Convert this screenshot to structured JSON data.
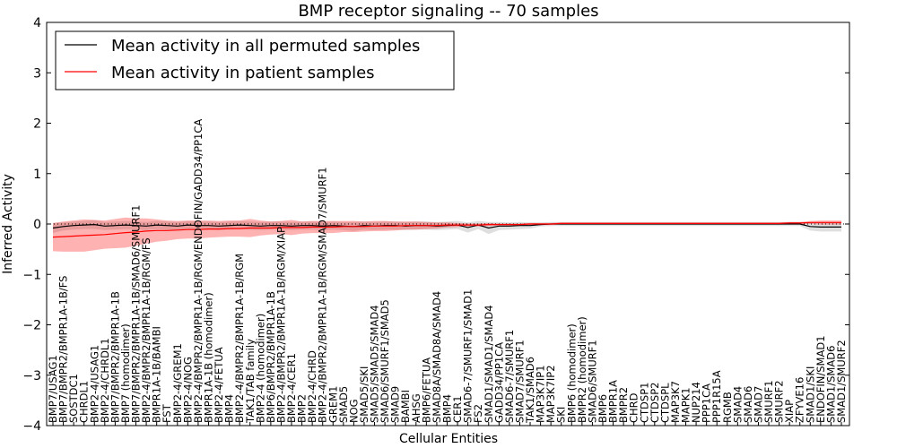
{
  "chart_data": {
    "type": "line",
    "title": "BMP receptor signaling -- 70 samples",
    "xlabel": "Cellular Entities",
    "ylabel": "Inferred Activity",
    "ylim": [
      -4,
      4
    ],
    "yticks": [
      -4,
      -3,
      -2,
      -1,
      0,
      1,
      2,
      3,
      4
    ],
    "legend_position": "top-left",
    "categories": [
      "BMP7/USAG1",
      "BMP7/BMPR2/BMPR1A-1B/FS",
      "SOSTDC1",
      "CHRDL1",
      "BMP2-4/USAG1",
      "BMP2-4/CHRDL1",
      "BMP7/BMPR2/BMPR1A-1B",
      "BMP7 (homodimer)",
      "BMP7/BMPR2/BMPR1A-1B/SMAD6/SMURF1",
      "BMP2-4/BMPR2/BMPR1A-1B/RGM/FS",
      "BMPR1A-1B/BAMBI",
      "FST",
      "BMP2-4/GREM1",
      "BMP2-4/NOG",
      "BMP2-4/BMPR2/BMPR1A-1B/RGM/ENDOFIN/GADD34/PP1CA",
      "BMPR1A-1B (homodimer)",
      "BMP2-4/FETUA",
      "BMP4",
      "BMP2-4/BMPR2/BMPR1A-1B/RGM",
      "TAK1/TAB family",
      "BMP2-4 (homodimer)",
      "BMP6/BMPR2/BMPR1A-1B",
      "BMP2-4/BMPR2/BMPR1A-1B/RGM/XIAP",
      "BMP2-4/CER1",
      "BMP2",
      "BMP2-4/CHRD",
      "BMP2-4/BMPR2/BMPR1A-1B/RGM/SMAD7/SMURF1",
      "GREM1",
      "SMAD5",
      "NOG",
      "SMAD5/SKI",
      "SMAD5/SMAD5/SMAD4",
      "SMAD6/SMURF1/SMAD5",
      "SMAD9",
      "BAMBI",
      "AHSG",
      "BMP6/FETUA",
      "SMAD8A/SMAD8A/SMAD4",
      "BMP4",
      "CER1",
      "SMAD6-7/SMURF1/SMAD1",
      "FS2",
      "SMAD1/SMAD1/SMAD4",
      "GADD34/PP1CA",
      "SMAD6-7/SMURF1",
      "SMAD7/SMURF1",
      "TAK1/SMAD6",
      "MAP3K7IP1",
      "MAP3K7IP2",
      "SKI",
      "BMP6 (homodimer)",
      "BMPR2 (homodimer)",
      "SMAD6/SMURF1",
      "BMP6",
      "BMPR1A",
      "BMPR2",
      "CHRD",
      "CTDSP1",
      "CTDSP2",
      "CTDSPL",
      "MAP3K7",
      "MAPK1",
      "NUP214",
      "PPP1CA",
      "PPP1R15A",
      "RGMB",
      "SMAD4",
      "SMAD6",
      "SMAD7",
      "SMURF1",
      "SMURF2",
      "XIAP",
      "ZFYVE16",
      "SMAD1/SKI",
      "ENDOFIN/SMAD1",
      "SMAD1/SMAD6",
      "SMAD1/SMURF2"
    ],
    "series": [
      {
        "name": "Mean activity in all permuted samples",
        "color": "#000000",
        "values": [
          -0.08,
          -0.05,
          -0.03,
          -0.02,
          -0.01,
          -0.04,
          -0.03,
          -0.02,
          -0.03,
          -0.04,
          -0.02,
          -0.03,
          -0.04,
          -0.02,
          -0.03,
          -0.03,
          -0.04,
          -0.03,
          -0.02,
          -0.03,
          -0.04,
          -0.03,
          -0.03,
          -0.04,
          -0.03,
          -0.03,
          -0.04,
          -0.03,
          -0.04,
          -0.05,
          -0.03,
          -0.04,
          -0.03,
          -0.03,
          -0.04,
          -0.03,
          -0.03,
          -0.04,
          -0.03,
          -0.02,
          -0.07,
          -0.02,
          -0.08,
          -0.04,
          -0.04,
          -0.03,
          -0.03,
          -0.01,
          0.0,
          0.0,
          0.0,
          0.0,
          0.0,
          0.0,
          0.0,
          0.0,
          0.0,
          0.0,
          0.0,
          0.0,
          0.0,
          0.0,
          0.0,
          0.0,
          0.0,
          0.0,
          0.0,
          0.0,
          0.0,
          0.0,
          0.0,
          0.0,
          0.0,
          -0.05,
          -0.06,
          -0.06,
          -0.06
        ],
        "band": [
          0.1,
          0.08,
          0.08,
          0.08,
          0.09,
          0.08,
          0.08,
          0.08,
          0.08,
          0.08,
          0.08,
          0.08,
          0.08,
          0.08,
          0.08,
          0.08,
          0.08,
          0.08,
          0.08,
          0.08,
          0.08,
          0.08,
          0.08,
          0.08,
          0.08,
          0.08,
          0.08,
          0.08,
          0.08,
          0.09,
          0.08,
          0.08,
          0.08,
          0.08,
          0.08,
          0.08,
          0.08,
          0.08,
          0.08,
          0.08,
          0.1,
          0.08,
          0.12,
          0.08,
          0.07,
          0.07,
          0.06,
          0.04,
          0.04,
          0.04,
          0.04,
          0.04,
          0.04,
          0.04,
          0.04,
          0.04,
          0.04,
          0.04,
          0.04,
          0.04,
          0.04,
          0.04,
          0.04,
          0.04,
          0.04,
          0.04,
          0.04,
          0.04,
          0.04,
          0.04,
          0.04,
          0.04,
          0.04,
          0.08,
          0.09,
          0.09,
          0.09
        ]
      },
      {
        "name": "Mean activity in patient samples",
        "color": "#ff0000",
        "values": [
          -0.26,
          -0.25,
          -0.24,
          -0.23,
          -0.22,
          -0.21,
          -0.19,
          -0.17,
          -0.16,
          -0.14,
          -0.13,
          -0.13,
          -0.12,
          -0.11,
          -0.11,
          -0.1,
          -0.1,
          -0.09,
          -0.09,
          -0.08,
          -0.08,
          -0.08,
          -0.07,
          -0.07,
          -0.07,
          -0.06,
          -0.06,
          -0.06,
          -0.05,
          -0.05,
          -0.05,
          -0.04,
          -0.04,
          -0.04,
          -0.03,
          -0.03,
          -0.03,
          -0.03,
          -0.02,
          -0.02,
          -0.02,
          -0.02,
          -0.01,
          -0.01,
          -0.01,
          -0.01,
          0.0,
          0.0,
          0.0,
          0.01,
          0.01,
          0.01,
          0.01,
          0.01,
          0.01,
          0.01,
          0.01,
          0.01,
          0.01,
          0.01,
          0.01,
          0.01,
          0.01,
          0.01,
          0.01,
          0.01,
          0.01,
          0.01,
          0.01,
          0.01,
          0.01,
          0.02,
          0.02,
          0.03,
          0.03,
          0.03,
          0.03
        ],
        "band": [
          0.28,
          0.3,
          0.31,
          0.32,
          0.3,
          0.28,
          0.29,
          0.3,
          0.27,
          0.25,
          0.22,
          0.2,
          0.18,
          0.18,
          0.18,
          0.17,
          0.16,
          0.16,
          0.16,
          0.18,
          0.15,
          0.13,
          0.13,
          0.15,
          0.12,
          0.12,
          0.12,
          0.12,
          0.11,
          0.11,
          0.1,
          0.1,
          0.1,
          0.09,
          0.08,
          0.08,
          0.07,
          0.06,
          0.05,
          0.04,
          0.03,
          0.03,
          0.03,
          0.02,
          0.02,
          0.02,
          0.02,
          0.02,
          0.02,
          0.02,
          0.02,
          0.02,
          0.02,
          0.02,
          0.02,
          0.02,
          0.02,
          0.02,
          0.02,
          0.02,
          0.02,
          0.02,
          0.02,
          0.02,
          0.02,
          0.02,
          0.02,
          0.02,
          0.02,
          0.02,
          0.02,
          0.02,
          0.02,
          0.03,
          0.04,
          0.04,
          0.04
        ]
      }
    ],
    "reference_line": {
      "y": 0,
      "style": "dotted"
    }
  }
}
